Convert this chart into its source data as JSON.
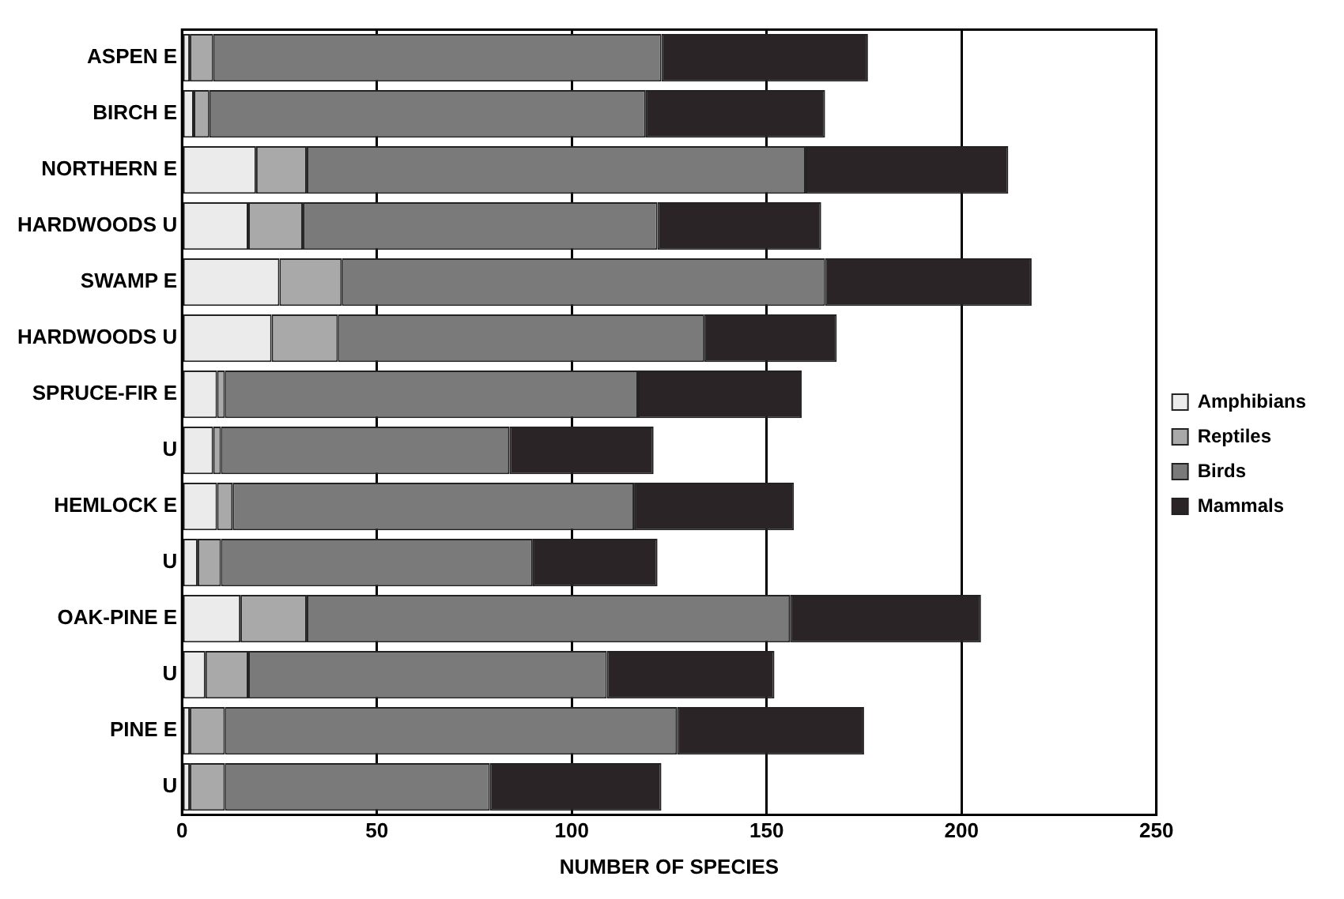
{
  "chart_data": {
    "type": "bar",
    "orientation": "horizontal",
    "stacked": true,
    "xlabel": "NUMBER OF SPECIES",
    "categories": [
      "ASPEN E",
      "BIRCH E",
      "NORTHERN E",
      "HARDWOODS U",
      "SWAMP E",
      "HARDWOODS U",
      "SPRUCE-FIR E",
      "U",
      "HEMLOCK E",
      "U",
      "OAK-PINE E",
      "U",
      "PINE E",
      "U"
    ],
    "series": [
      {
        "name": "Amphibians",
        "color": "#ebebeb",
        "values": [
          2,
          3,
          19,
          17,
          25,
          23,
          9,
          8,
          9,
          4,
          15,
          6,
          2,
          2
        ]
      },
      {
        "name": "Reptiles",
        "color": "#a9a9a9",
        "values": [
          6,
          4,
          13,
          14,
          16,
          17,
          2,
          2,
          4,
          6,
          17,
          11,
          9,
          9
        ]
      },
      {
        "name": "Birds",
        "color": "#7a7a7a",
        "values": [
          115,
          112,
          128,
          91,
          124,
          94,
          106,
          74,
          103,
          80,
          124,
          92,
          116,
          68
        ]
      },
      {
        "name": "Mammals",
        "color": "#2b2426",
        "values": [
          53,
          46,
          52,
          42,
          53,
          34,
          42,
          37,
          41,
          32,
          49,
          43,
          48,
          44
        ]
      }
    ],
    "xlim": [
      0,
      250
    ],
    "xticks": [
      0,
      50,
      100,
      150,
      200,
      250
    ],
    "grid": "x",
    "legend": "right"
  }
}
